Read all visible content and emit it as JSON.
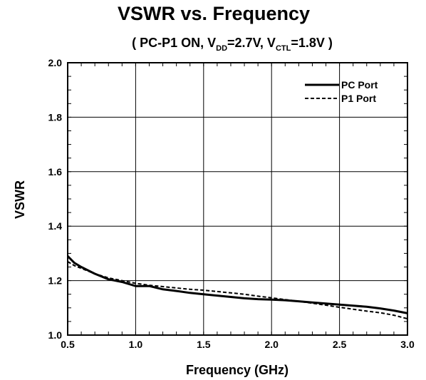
{
  "chart_data": {
    "type": "line",
    "title": "VSWR vs. Frequency",
    "subtitle": {
      "pre": "( PC-P1 ON, V",
      "sub1": "DD",
      "mid": "=2.7V, V",
      "sub2": "CTL",
      "post": "=1.8V )"
    },
    "xlabel": "Frequency (GHz)",
    "ylabel": "VSWR",
    "xlim": [
      0.5,
      3.0
    ],
    "ylim": [
      1.0,
      2.0
    ],
    "xticks": [
      "0.5",
      "1.0",
      "1.5",
      "2.0",
      "2.5",
      "3.0"
    ],
    "yticks": [
      "1.0",
      "1.2",
      "1.4",
      "1.6",
      "1.8",
      "2.0"
    ],
    "grid": true,
    "legend_position": "top-right",
    "series": [
      {
        "name": "PC Port",
        "style": "solid",
        "color": "#000000",
        "x": [
          0.5,
          0.55,
          0.6,
          0.7,
          0.8,
          0.9,
          1.0,
          1.1,
          1.2,
          1.3,
          1.4,
          1.5,
          1.6,
          1.7,
          1.8,
          1.9,
          2.0,
          2.1,
          2.2,
          2.3,
          2.4,
          2.5,
          2.6,
          2.7,
          2.8,
          2.9,
          3.0
        ],
        "y": [
          1.29,
          1.265,
          1.25,
          1.225,
          1.205,
          1.195,
          1.18,
          1.18,
          1.168,
          1.162,
          1.155,
          1.15,
          1.145,
          1.14,
          1.135,
          1.132,
          1.13,
          1.128,
          1.124,
          1.12,
          1.116,
          1.112,
          1.108,
          1.104,
          1.098,
          1.09,
          1.08
        ]
      },
      {
        "name": "P1 Port",
        "style": "dashed",
        "color": "#000000",
        "x": [
          0.5,
          0.55,
          0.6,
          0.7,
          0.8,
          0.9,
          1.0,
          1.1,
          1.2,
          1.3,
          1.4,
          1.5,
          1.6,
          1.7,
          1.8,
          1.9,
          2.0,
          2.1,
          2.2,
          2.3,
          2.4,
          2.5,
          2.6,
          2.7,
          2.8,
          2.9,
          3.0
        ],
        "y": [
          1.27,
          1.255,
          1.245,
          1.225,
          1.21,
          1.2,
          1.19,
          1.183,
          1.178,
          1.173,
          1.168,
          1.165,
          1.16,
          1.155,
          1.15,
          1.143,
          1.137,
          1.13,
          1.124,
          1.117,
          1.11,
          1.102,
          1.095,
          1.088,
          1.082,
          1.073,
          1.06
        ]
      }
    ]
  }
}
